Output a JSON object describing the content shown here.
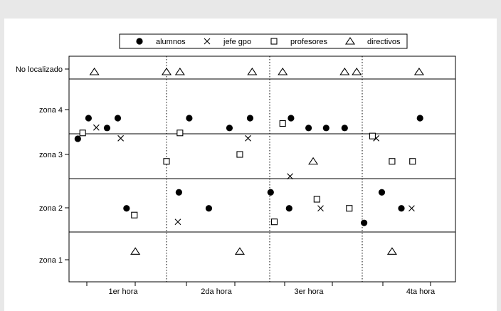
{
  "chart_data": {
    "type": "scatter",
    "title": "",
    "xlabel": "",
    "ylabel": "",
    "x_groups": [
      "1er hora",
      "2da hora",
      "3er hora",
      "4ta hora"
    ],
    "x_range": [
      0,
      4
    ],
    "y_categories": [
      "zona 1",
      "zona 2",
      "zona 3",
      "zona 4",
      "No localizado"
    ],
    "legend_position": "top",
    "grid": false,
    "series": [
      {
        "name": "alumnos",
        "marker": "filled-circle",
        "points": [
          {
            "x": 0.09,
            "y": 3.35
          },
          {
            "x": 0.2,
            "y": 3.81
          },
          {
            "x": 0.39,
            "y": 3.59
          },
          {
            "x": 0.5,
            "y": 3.81
          },
          {
            "x": 0.59,
            "y": 1.99
          },
          {
            "x": 1.12,
            "y": 2.29
          },
          {
            "x": 1.22,
            "y": 3.81
          },
          {
            "x": 1.41,
            "y": 1.99
          },
          {
            "x": 1.61,
            "y": 3.59
          },
          {
            "x": 1.81,
            "y": 3.81
          },
          {
            "x": 2.01,
            "y": 2.29
          },
          {
            "x": 2.21,
            "y": 1.99
          },
          {
            "x": 2.23,
            "y": 3.81
          },
          {
            "x": 2.42,
            "y": 3.59
          },
          {
            "x": 2.61,
            "y": 3.59
          },
          {
            "x": 2.81,
            "y": 3.59
          },
          {
            "x": 3.02,
            "y": 1.71
          },
          {
            "x": 3.21,
            "y": 2.29
          },
          {
            "x": 3.42,
            "y": 1.99
          },
          {
            "x": 3.62,
            "y": 3.81
          }
        ]
      },
      {
        "name": "jefe gpo",
        "marker": "x",
        "points": [
          {
            "x": 0.28,
            "y": 3.6
          },
          {
            "x": 0.53,
            "y": 3.36
          },
          {
            "x": 1.11,
            "y": 1.73
          },
          {
            "x": 1.79,
            "y": 3.36
          },
          {
            "x": 2.22,
            "y": 2.59
          },
          {
            "x": 2.55,
            "y": 1.99
          },
          {
            "x": 3.15,
            "y": 3.36
          },
          {
            "x": 3.53,
            "y": 1.99
          }
        ]
      },
      {
        "name": "profesores",
        "marker": "open-square",
        "points": [
          {
            "x": 0.14,
            "y": 3.48
          },
          {
            "x": 0.67,
            "y": 1.86
          },
          {
            "x": 1.0,
            "y": 2.87
          },
          {
            "x": 1.13,
            "y": 3.48
          },
          {
            "x": 1.71,
            "y": 3.0
          },
          {
            "x": 2.05,
            "y": 1.73
          },
          {
            "x": 2.14,
            "y": 3.69
          },
          {
            "x": 2.51,
            "y": 2.16
          },
          {
            "x": 2.86,
            "y": 1.99
          },
          {
            "x": 3.11,
            "y": 3.41
          },
          {
            "x": 3.32,
            "y": 2.87
          },
          {
            "x": 3.54,
            "y": 2.87
          }
        ]
      },
      {
        "name": "directivos",
        "marker": "open-triangle",
        "points": [
          {
            "x": 0.26,
            "y": 4.93
          },
          {
            "x": 1.0,
            "y": 4.93
          },
          {
            "x": 1.13,
            "y": 4.93
          },
          {
            "x": 1.83,
            "y": 4.93
          },
          {
            "x": 2.14,
            "y": 4.93
          },
          {
            "x": 2.81,
            "y": 4.93
          },
          {
            "x": 2.94,
            "y": 4.93
          },
          {
            "x": 3.61,
            "y": 4.93
          },
          {
            "x": 0.68,
            "y": 1.16
          },
          {
            "x": 1.71,
            "y": 1.16
          },
          {
            "x": 2.47,
            "y": 2.87
          },
          {
            "x": 3.32,
            "y": 1.16
          }
        ]
      }
    ]
  }
}
